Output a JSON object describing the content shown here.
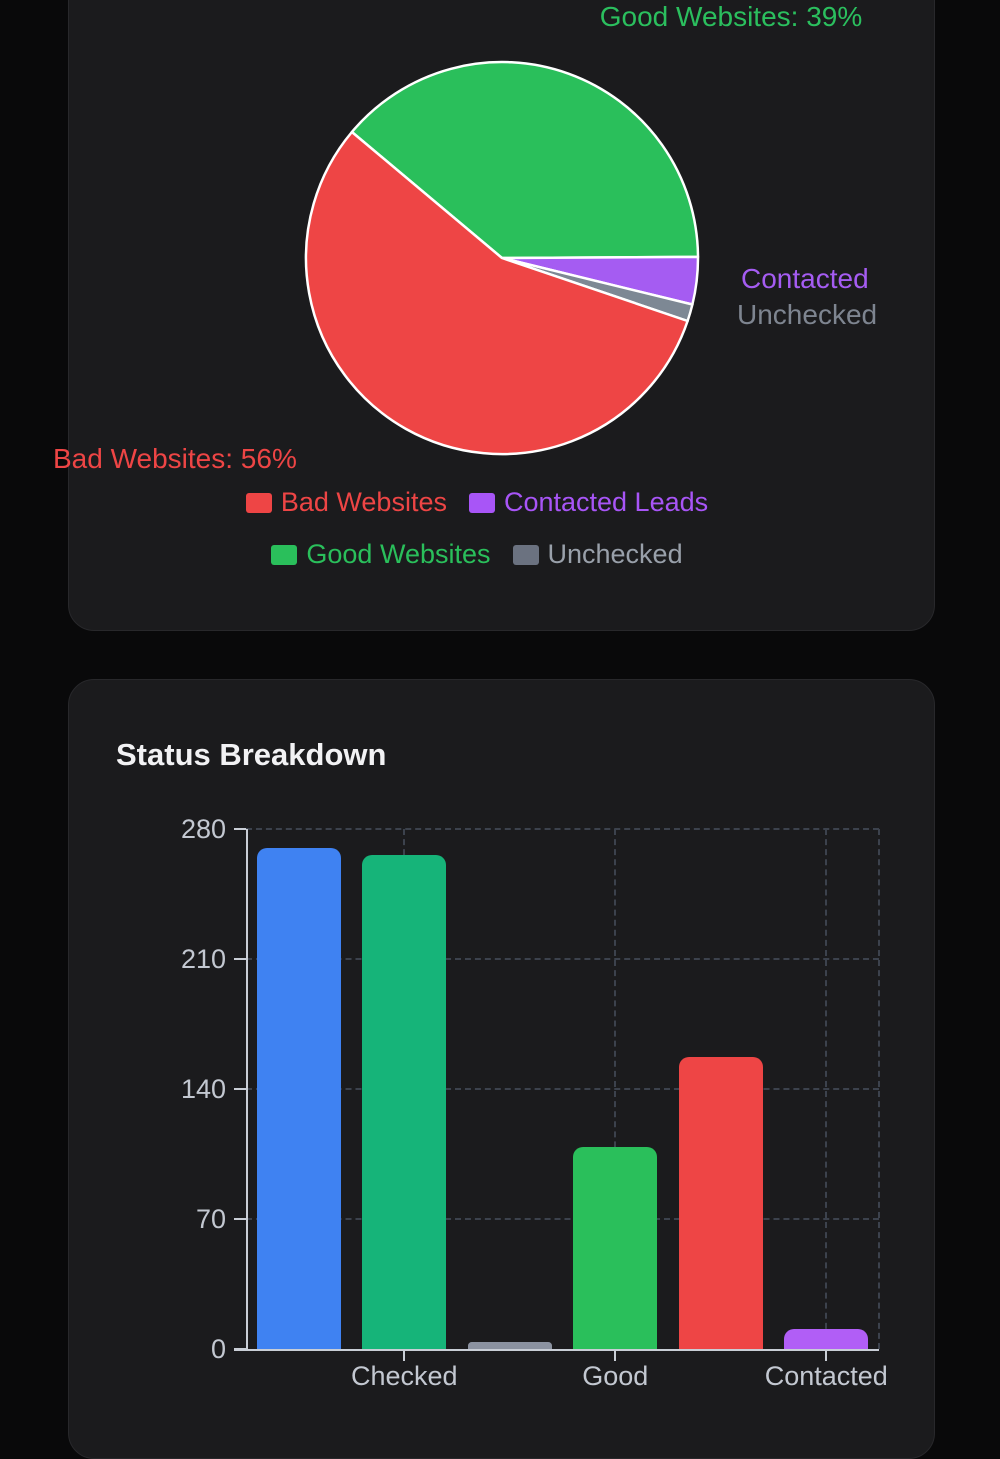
{
  "pie_card": {
    "labels": {
      "good": "Good Websites: 39%",
      "bad": "Bad Websites: 56%",
      "contacted": "Contacted",
      "unchecked": "Unchecked"
    },
    "legend": [
      {
        "label": "Bad Websites",
        "swatch_color": "#ee4545",
        "text_color": "#ee4545"
      },
      {
        "label": "Contacted Leads",
        "swatch_color": "#a855f7",
        "text_color": "#a855f7"
      },
      {
        "label": "Good Websites",
        "swatch_color": "#2abf5b",
        "text_color": "#2abf5b"
      },
      {
        "label": "Unchecked",
        "swatch_color": "#6b7280",
        "text_color": "#99a0aa"
      }
    ]
  },
  "bar_card": {
    "title": "Status Breakdown"
  },
  "chart_data": [
    {
      "type": "pie",
      "slices": [
        {
          "label": "Good Websites",
          "value": 109,
          "percent": 38.8,
          "color": "#2abf5b"
        },
        {
          "label": "Contacted Leads",
          "value": 11,
          "percent": 3.9,
          "color": "#a55cf2"
        },
        {
          "label": "Unchecked",
          "value": 4,
          "percent": 1.4,
          "color": "#7d8894"
        },
        {
          "label": "Bad Websites",
          "value": 157,
          "percent": 55.9,
          "color": "#ee4545"
        }
      ],
      "rotation_deg": -50,
      "border_color": "#ffffff",
      "legend_position": "bottom",
      "outer_label_percents": {
        "good": 39,
        "bad": 56
      }
    },
    {
      "type": "bar",
      "categories": [
        "",
        "Checked",
        "",
        "Good",
        "",
        "Contacted"
      ],
      "values": [
        270,
        266,
        4,
        109,
        157,
        11
      ],
      "colors": [
        "#3f82f2",
        "#16b479",
        "#8b92a0",
        "#2abf5b",
        "#ee4545",
        "#b15ef6"
      ],
      "yticks": [
        0,
        70,
        140,
        210,
        280
      ],
      "ylim": [
        0,
        280
      ],
      "grid": "dashed",
      "legend_position": "none"
    }
  ]
}
